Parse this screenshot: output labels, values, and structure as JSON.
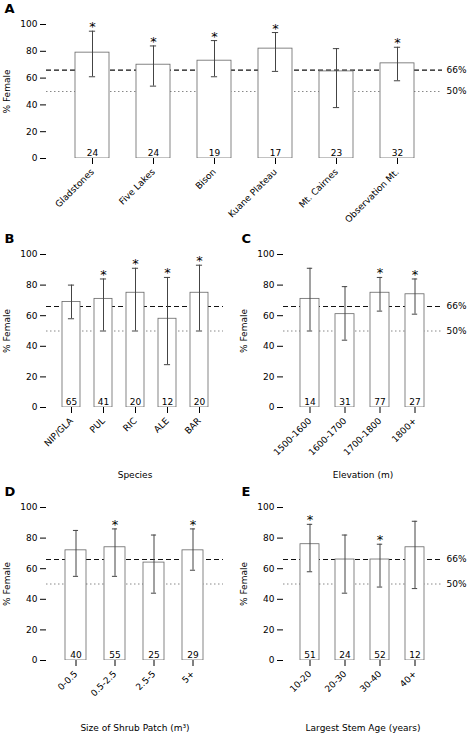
{
  "chart_data": [
    {
      "type": "bar",
      "title": "A",
      "categories": [
        "Gladstones",
        "Five Lakes",
        "Bison",
        "Kuane Plateau",
        "Mt. Cairnes",
        "Observation Mt."
      ],
      "values": [
        79,
        70,
        73,
        82,
        65,
        71
      ],
      "errors_low": [
        18,
        16,
        12,
        17,
        27,
        13
      ],
      "errors_high": [
        16,
        14,
        15,
        12,
        17,
        12
      ],
      "ns": [
        24,
        24,
        19,
        17,
        23,
        32
      ],
      "sig": [
        true,
        true,
        true,
        true,
        false,
        true
      ],
      "sig_mark": "*",
      "ylabel": "% Female",
      "color": "white",
      "ylim": [
        0,
        100
      ],
      "yticks": [
        0,
        20,
        40,
        60,
        80,
        100
      ],
      "grid": false,
      "ref_lines": [
        {
          "value": 66,
          "label": "66%",
          "color": "#111111",
          "line_style": "dashed"
        },
        {
          "value": 50,
          "label": "50%",
          "color": "#888888",
          "line_style": "dotted"
        }
      ]
    },
    {
      "type": "bar",
      "title": "B",
      "categories": [
        "NIP/GLA",
        "PUL",
        "RIC",
        "ALE",
        "BAR"
      ],
      "values": [
        69,
        71,
        75,
        58,
        75
      ],
      "errors_low": [
        11,
        21,
        25,
        30,
        25
      ],
      "errors_high": [
        11,
        13,
        16,
        27,
        18
      ],
      "ns": [
        65,
        41,
        20,
        12,
        20
      ],
      "sig": [
        false,
        true,
        true,
        true,
        true
      ],
      "sig_mark": "*",
      "xlabel": "Species",
      "ylabel": "% Female",
      "color": "white",
      "ylim": [
        0,
        100
      ],
      "yticks": [
        0,
        20,
        40,
        60,
        80,
        100
      ],
      "grid": false,
      "ref_lines": [
        {
          "value": 66,
          "color": "#111111",
          "line_style": "dashed"
        },
        {
          "value": 50,
          "color": "#888888",
          "line_style": "dotted"
        }
      ]
    },
    {
      "type": "bar",
      "title": "C",
      "categories": [
        "1500-1600",
        "1600-1700",
        "1700-1800",
        "1800+"
      ],
      "values": [
        71,
        61,
        75,
        74
      ],
      "errors_low": [
        21,
        17,
        12,
        13
      ],
      "errors_high": [
        20,
        18,
        10,
        10
      ],
      "ns": [
        14,
        31,
        77,
        27
      ],
      "sig": [
        false,
        false,
        true,
        true
      ],
      "sig_mark": "*",
      "xlabel": "Elevation (m)",
      "ylabel": "% Female",
      "color": "white",
      "ylim": [
        0,
        100
      ],
      "yticks": [
        0,
        20,
        40,
        60,
        80,
        100
      ],
      "grid": false,
      "ref_lines": [
        {
          "value": 66,
          "label": "66%",
          "color": "#111111",
          "line_style": "dashed"
        },
        {
          "value": 50,
          "label": "50%",
          "color": "#888888",
          "line_style": "dotted"
        }
      ]
    },
    {
      "type": "bar",
      "title": "D",
      "categories": [
        "0-0.5",
        "0.5-2.5",
        "2.5-5",
        "5+"
      ],
      "values": [
        72,
        74,
        64,
        72
      ],
      "errors_low": [
        17,
        19,
        20,
        13
      ],
      "errors_high": [
        13,
        12,
        18,
        14
      ],
      "ns": [
        40,
        55,
        25,
        29
      ],
      "sig": [
        false,
        true,
        false,
        true
      ],
      "sig_mark": "*",
      "xlabel": "Size of Shrub Patch (m³)",
      "ylabel": "% Female",
      "color": "white",
      "ylim": [
        0,
        100
      ],
      "yticks": [
        0,
        20,
        40,
        60,
        80,
        100
      ],
      "grid": false,
      "ref_lines": [
        {
          "value": 66,
          "color": "#111111",
          "line_style": "dashed"
        },
        {
          "value": 50,
          "color": "#888888",
          "line_style": "dotted"
        }
      ]
    },
    {
      "type": "bar",
      "title": "E",
      "categories": [
        "10-20",
        "20-30",
        "30-40",
        "40+"
      ],
      "values": [
        76,
        66,
        66,
        74
      ],
      "errors_low": [
        18,
        22,
        18,
        27
      ],
      "errors_high": [
        13,
        16,
        10,
        17
      ],
      "ns": [
        51,
        24,
        52,
        12
      ],
      "sig": [
        true,
        false,
        true,
        false
      ],
      "sig_mark": "*",
      "xlabel": "Largest Stem Age (years)",
      "ylabel": "% Female",
      "color": "white",
      "ylim": [
        0,
        100
      ],
      "yticks": [
        0,
        20,
        40,
        60,
        80,
        100
      ],
      "grid": false,
      "ref_lines": [
        {
          "value": 66,
          "label": "66%",
          "color": "#111111",
          "line_style": "dashed"
        },
        {
          "value": 50,
          "label": "50%",
          "color": "#888888",
          "line_style": "dotted"
        }
      ]
    }
  ]
}
